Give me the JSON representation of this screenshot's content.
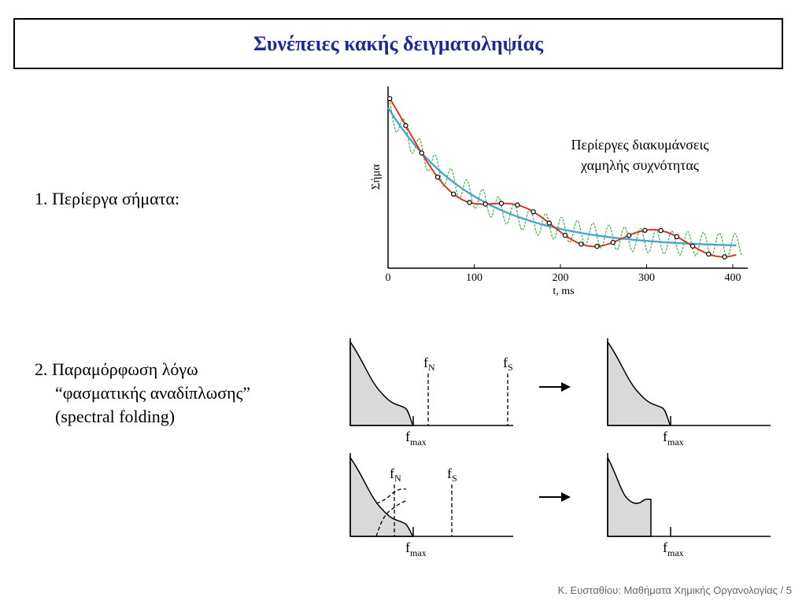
{
  "title": "Συνέπειες κακής δειγματοληψίας",
  "items": [
    {
      "number": "1.",
      "text": "Περίεργα σήματα:"
    },
    {
      "number": "2.",
      "lines": [
        "Παραμόρφωση λόγω",
        "“φασματικής αναδίπλωσης”",
        "(spectral folding)"
      ]
    }
  ],
  "signal_plot": {
    "ylabel": "Σήμα",
    "xlabel": "t, ms",
    "x_ticks": [
      "0",
      "100",
      "200",
      "300",
      "400"
    ],
    "annotation": [
      "Περίεργες διακυμάνσεις",
      "χαμηλής συχνότητας"
    ],
    "colors": {
      "true_decay": "#4aa6c8",
      "aliased": "#cc3b2a",
      "fast_oscillation": "#5aa85a"
    }
  },
  "spectra": {
    "f_N": "f",
    "f_N_sub": "N",
    "f_S": "f",
    "f_S_sub": "S",
    "f_max": "f",
    "f_max_sub": "max"
  },
  "footer": "Κ. Ευσταθίου: Μαθήματα Χημικής Οργανολογίας / 5"
}
